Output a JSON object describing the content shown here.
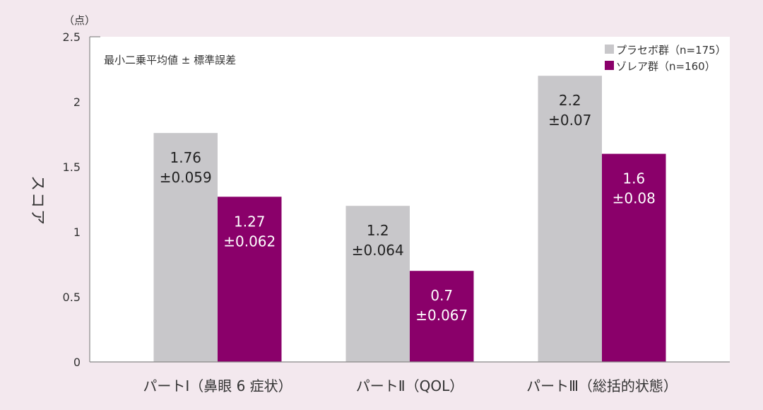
{
  "chart_data": {
    "type": "bar",
    "unit_label": "（点）",
    "ylabel": "スコア",
    "note": "最小二乗平均値 ± 標準誤差",
    "ylim": [
      0,
      2.5
    ],
    "yticks": [
      "0",
      "0.5",
      "1",
      "1.5",
      "2",
      "2.5"
    ],
    "ytick_values": [
      0,
      0.5,
      1,
      1.5,
      2,
      2.5
    ],
    "categories": [
      "パートⅠ（鼻眼 6 症状）",
      "パートⅡ（QOL）",
      "パートⅢ（総括的状態）"
    ],
    "legend_position": "top-right",
    "series": [
      {
        "name": "プラセボ群（n=175）",
        "color": "#c8c7ca",
        "values": [
          1.76,
          1.2,
          2.2
        ],
        "labels": [
          "1.76",
          "1.2",
          "2.2"
        ],
        "errors": [
          "±0.059",
          "±0.064",
          "±0.07"
        ],
        "text_color": "#222222"
      },
      {
        "name": "ゾレア群（n=160）",
        "color": "#8a006a",
        "values": [
          1.27,
          0.7,
          1.6
        ],
        "labels": [
          "1.27",
          "0.7",
          "1.6"
        ],
        "errors": [
          "±0.062",
          "±0.067",
          "±0.08"
        ],
        "text_color": "#ffffff"
      }
    ]
  }
}
